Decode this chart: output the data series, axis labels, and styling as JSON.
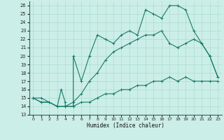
{
  "xlabel": "Humidex (Indice chaleur)",
  "xlim": [
    -0.5,
    23.5
  ],
  "ylim": [
    13,
    26.5
  ],
  "yticks": [
    13,
    14,
    15,
    16,
    17,
    18,
    19,
    20,
    21,
    22,
    23,
    24,
    25,
    26
  ],
  "xticks": [
    0,
    1,
    2,
    3,
    4,
    5,
    6,
    7,
    8,
    9,
    10,
    11,
    12,
    13,
    14,
    15,
    16,
    17,
    18,
    19,
    20,
    21,
    22,
    23
  ],
  "background_color": "#cceee8",
  "grid_color": "#aaddcc",
  "line_color": "#1a7a6a",
  "line1_x": [
    0,
    1,
    2,
    3,
    3.5,
    4,
    4,
    5,
    5,
    6,
    7,
    8,
    9,
    10,
    11,
    12,
    13,
    14,
    15,
    16,
    17,
    18,
    19,
    20,
    21,
    22,
    23
  ],
  "line1_y": [
    15,
    15,
    14.5,
    14,
    16,
    14.5,
    14,
    14,
    20,
    17,
    20,
    22.5,
    22,
    21.5,
    22.5,
    23,
    22.5,
    25.5,
    25,
    24.5,
    26,
    26,
    25.5,
    23,
    21.5,
    20,
    17.5
  ],
  "line2_x": [
    0,
    1,
    2,
    3,
    4,
    5,
    6,
    7,
    8,
    9,
    10,
    11,
    12,
    13,
    14,
    15,
    16,
    17,
    18,
    19,
    20,
    21,
    22,
    23
  ],
  "line2_y": [
    15,
    14.5,
    14.5,
    14,
    14,
    14.5,
    15.5,
    17,
    18,
    19.5,
    20.5,
    21,
    21.5,
    22,
    22.5,
    22.5,
    23,
    21.5,
    21,
    21.5,
    22,
    21.5,
    20,
    17.5
  ],
  "line3_x": [
    0,
    1,
    2,
    3,
    4,
    5,
    6,
    7,
    8,
    9,
    10,
    11,
    12,
    13,
    14,
    15,
    16,
    17,
    18,
    19,
    20,
    21,
    22,
    23
  ],
  "line3_y": [
    15,
    14.5,
    14.5,
    14,
    14,
    14,
    14.5,
    14.5,
    15,
    15.5,
    15.5,
    16,
    16,
    16.5,
    16.5,
    17,
    17,
    17.5,
    17,
    17.5,
    17,
    17,
    17,
    17
  ]
}
